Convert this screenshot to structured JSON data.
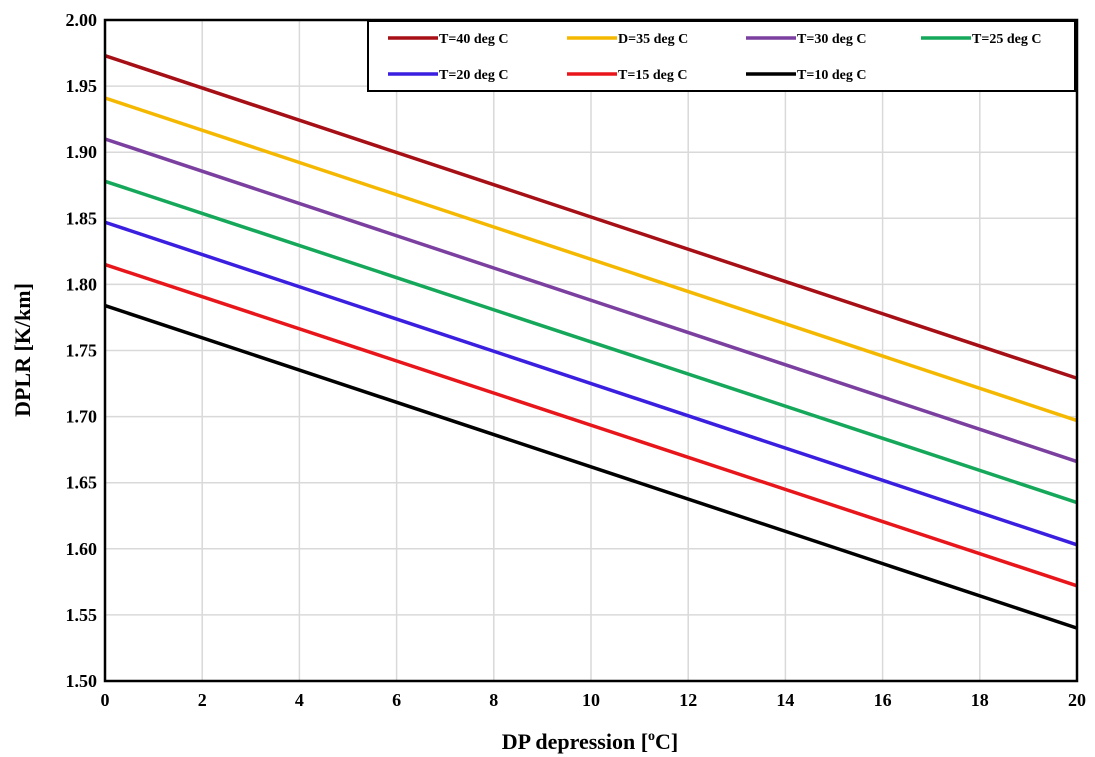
{
  "chart_data": {
    "type": "line",
    "xlabel": "DP depression [",
    "xlabel_sup": "o",
    "xlabel_suffix": "C]",
    "ylabel": "DPLR [K/km]",
    "xlim": [
      0,
      20
    ],
    "ylim": [
      1.5,
      2.0
    ],
    "x_ticks": [
      "0",
      "2",
      "4",
      "6",
      "8",
      "10",
      "12",
      "14",
      "16",
      "18",
      "20"
    ],
    "y_ticks": [
      "1.50",
      "1.55",
      "1.60",
      "1.65",
      "1.70",
      "1.75",
      "1.80",
      "1.85",
      "1.90",
      "1.95",
      "2.00"
    ],
    "grid": true,
    "legend_position": "top-right",
    "series": [
      {
        "name": "T=40 deg C",
        "color": "#a50f15",
        "x": [
          0,
          20
        ],
        "values": [
          1.973,
          1.729
        ]
      },
      {
        "name": "D=35 deg C",
        "color": "#f5b800",
        "x": [
          0,
          20
        ],
        "values": [
          1.941,
          1.697
        ]
      },
      {
        "name": "T=30 deg C",
        "color": "#7b3fa0",
        "x": [
          0,
          20
        ],
        "values": [
          1.91,
          1.666
        ]
      },
      {
        "name": "T=25 deg C",
        "color": "#15a85a",
        "x": [
          0,
          20
        ],
        "values": [
          1.878,
          1.635
        ]
      },
      {
        "name": "T=20 deg C",
        "color": "#3a1fe0",
        "x": [
          0,
          20
        ],
        "values": [
          1.847,
          1.603
        ]
      },
      {
        "name": "T=15 deg C",
        "color": "#e8161b",
        "x": [
          0,
          20
        ],
        "values": [
          1.815,
          1.572
        ]
      },
      {
        "name": "T=10 deg C",
        "color": "#000000",
        "x": [
          0,
          20
        ],
        "values": [
          1.784,
          1.54
        ]
      }
    ]
  }
}
